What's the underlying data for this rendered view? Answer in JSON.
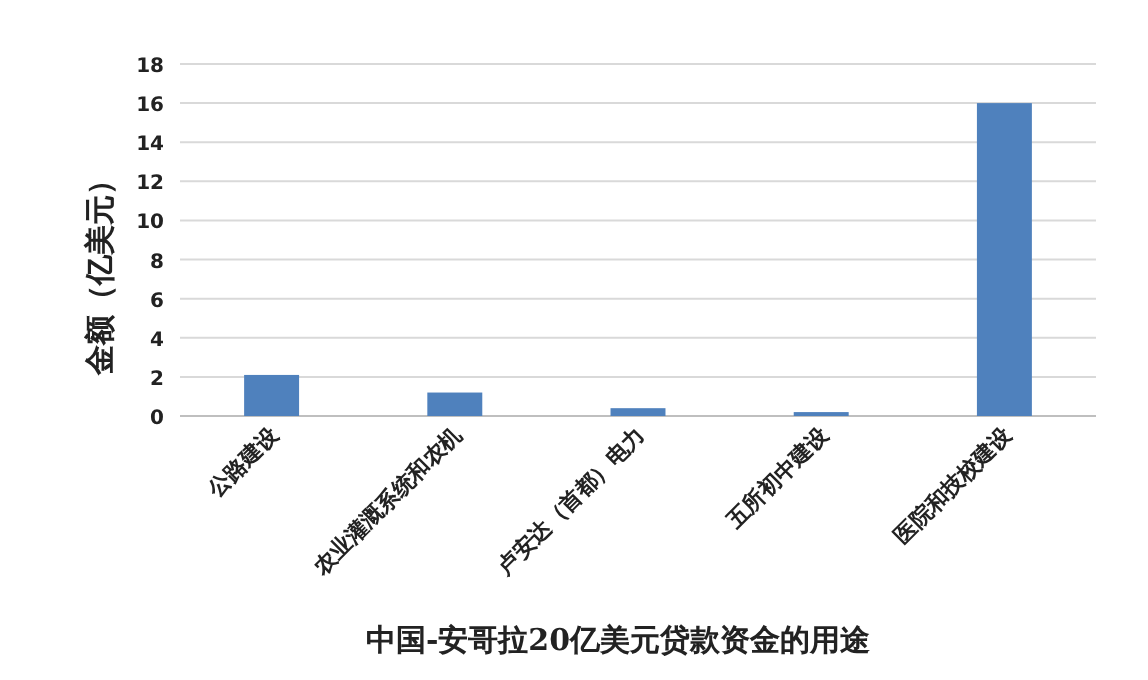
{
  "chart_data": {
    "type": "bar",
    "xlabel": "中国-安哥拉20亿美元贷款资金的用途",
    "ylabel": "金额（亿美元）",
    "categories": [
      "公路建设",
      "农业灌溉系统和农机",
      "卢安达（首都）电力",
      "五所初中建设",
      "医院和技校建设"
    ],
    "values": [
      2.1,
      1.2,
      0.4,
      0.2,
      16
    ],
    "color": "#4f81bd",
    "ylim": [
      0,
      18
    ],
    "yticks": [
      0,
      2,
      4,
      6,
      8,
      10,
      12,
      14,
      16,
      18
    ],
    "grid": "y"
  }
}
